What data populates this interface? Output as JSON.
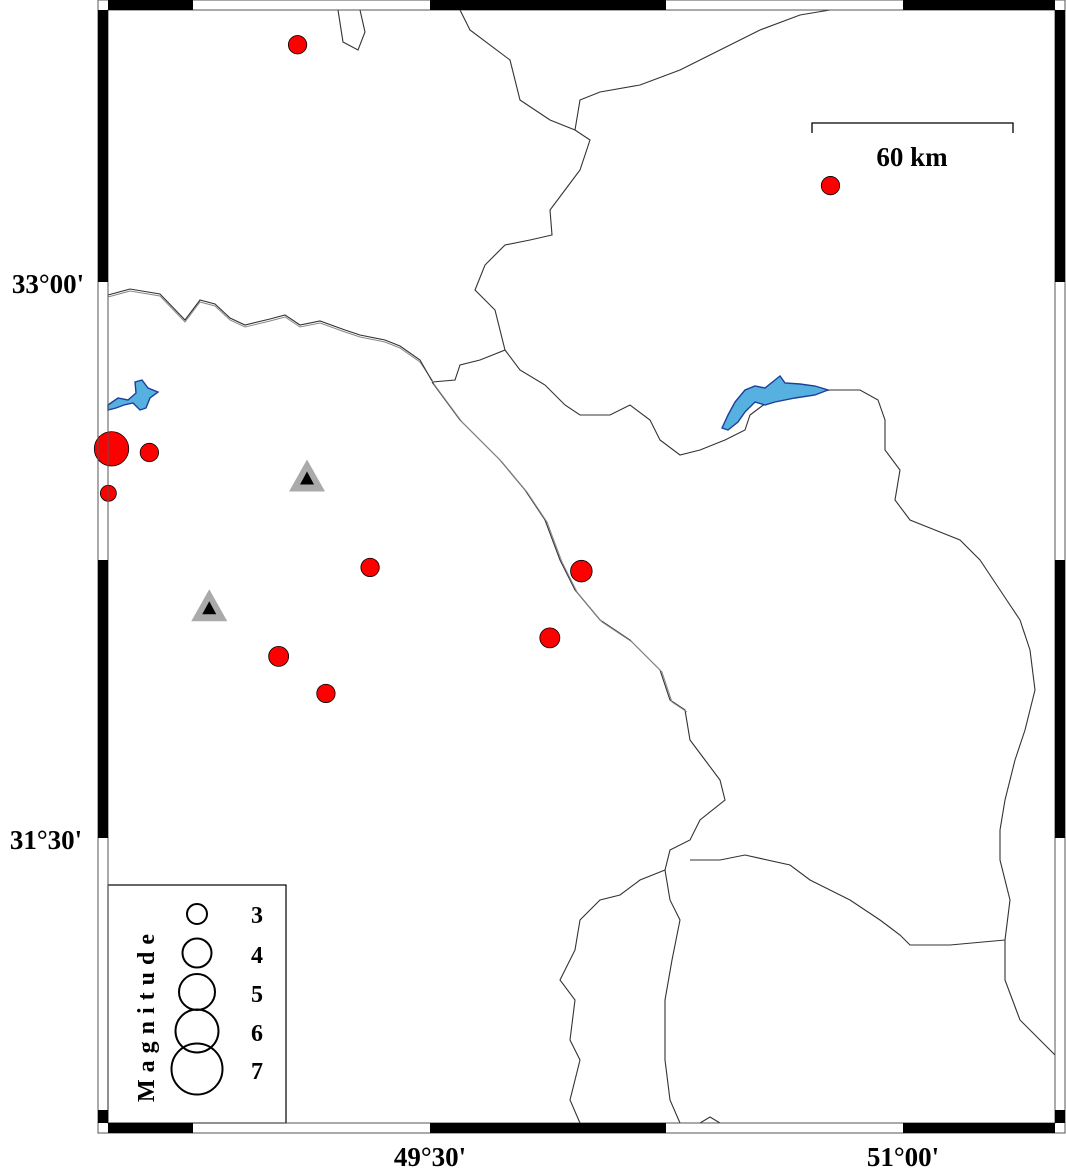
{
  "map": {
    "lat_labels": [
      "33°00'",
      "31°30'"
    ],
    "lon_labels": [
      "49°30'",
      "51°00'"
    ],
    "scale_bar": {
      "label": "60 km",
      "length_km": 60
    },
    "colors": {
      "event": "#ff0000",
      "lake": "#56b0e0",
      "station_outer": "#aaaaaa",
      "station_inner": "#000000"
    },
    "events": [
      {
        "lon": 49.08,
        "lat": 33.64,
        "mag": 2.8
      },
      {
        "lon": 50.77,
        "lat": 33.26,
        "mag": 2.8
      },
      {
        "lon": 48.49,
        "lat": 32.55,
        "mag": 4.8
      },
      {
        "lon": 48.61,
        "lat": 32.54,
        "mag": 2.8
      },
      {
        "lon": 48.48,
        "lat": 32.43,
        "mag": 2.5
      },
      {
        "lon": 49.31,
        "lat": 32.23,
        "mag": 2.8
      },
      {
        "lon": 49.98,
        "lat": 32.22,
        "mag": 3.2
      },
      {
        "lon": 49.88,
        "lat": 32.04,
        "mag": 3.0
      },
      {
        "lon": 49.02,
        "lat": 31.99,
        "mag": 3.0
      },
      {
        "lon": 49.17,
        "lat": 31.89,
        "mag": 2.8
      }
    ],
    "stations": [
      {
        "lon": 49.11,
        "lat": 32.47
      },
      {
        "lon": 48.8,
        "lat": 32.12
      }
    ]
  },
  "legend": {
    "title": "Magnitude",
    "magnitudes": [
      "3",
      "4",
      "5",
      "6",
      "7"
    ]
  }
}
